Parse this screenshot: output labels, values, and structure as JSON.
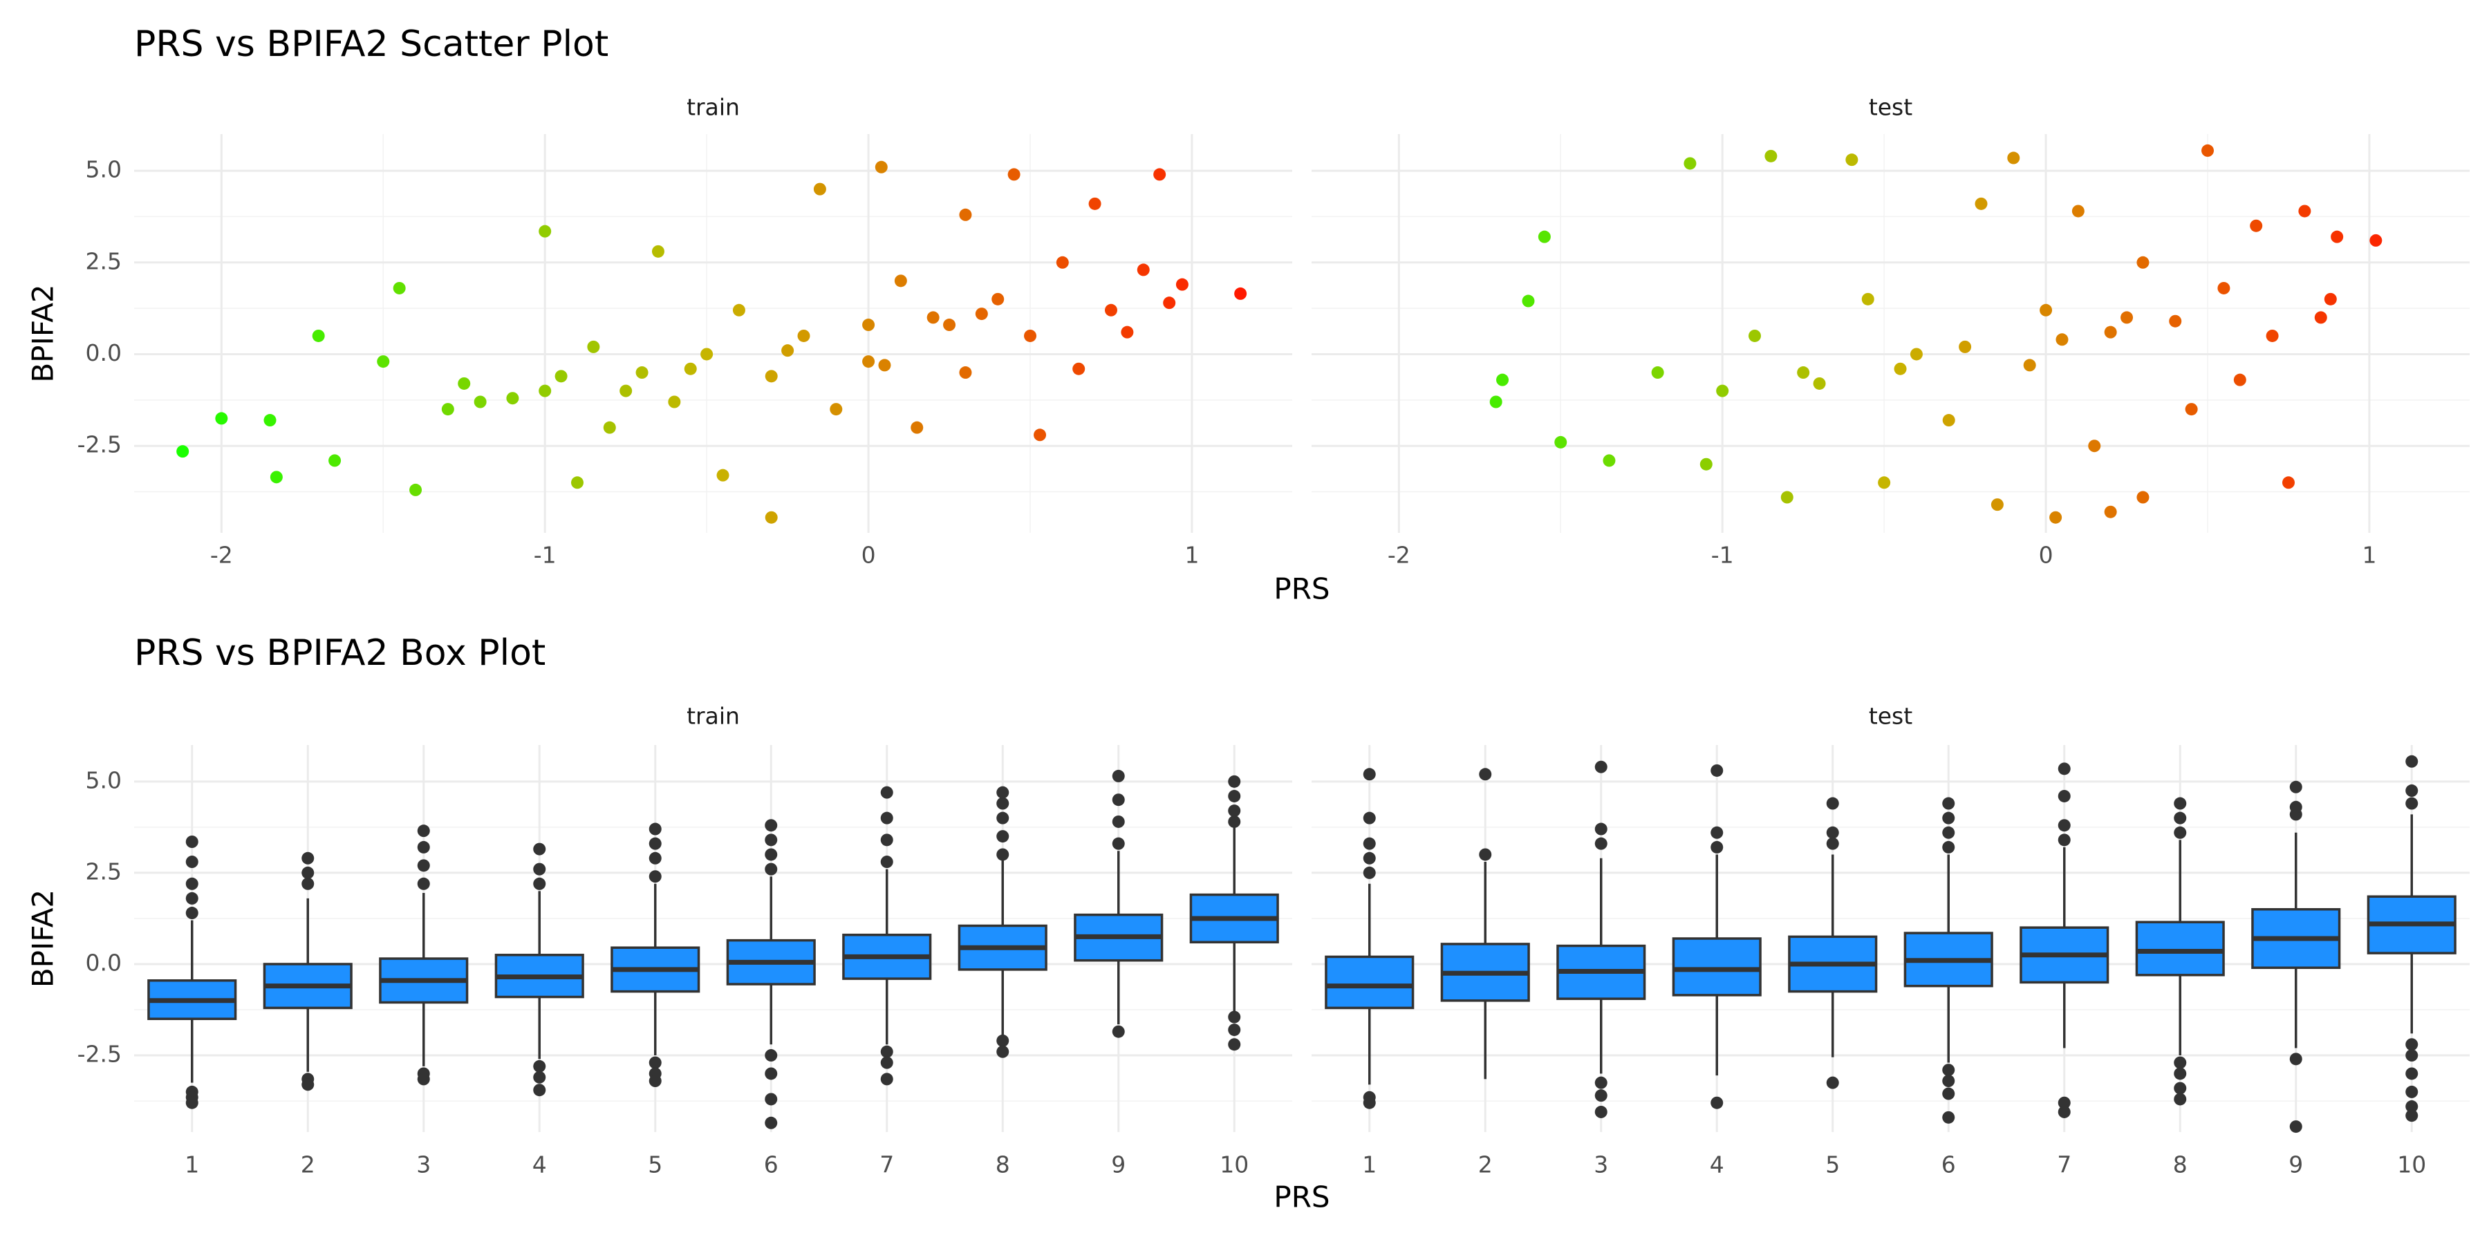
{
  "chart_data": [
    {
      "type": "scatter",
      "title": "PRS vs BPIFA2 Scatter Plot",
      "x_label": "PRS",
      "y_label": "BPIFA2",
      "xlim": [
        -2.27,
        1.31
      ],
      "ylim": [
        -4.87,
        6.0
      ],
      "xticks": [
        -2,
        -1,
        0,
        1
      ],
      "xminor": [
        -1.5,
        -0.5,
        0.5
      ],
      "yticks": [
        -2.5,
        {
          "value": 0,
          "label": "0.0"
        },
        2.5,
        {
          "value": 5,
          "label": "5.0"
        }
      ],
      "yminor": [
        -3.75,
        -1.25,
        1.25,
        3.75
      ],
      "grid": true,
      "color_gradient": [
        "#1aff00",
        "#c8b400",
        "#ff1a00"
      ],
      "panels": [
        {
          "name": "train",
          "x": [
            -2.12,
            -2.0,
            -1.85,
            -1.83,
            -1.7,
            -1.65,
            -1.5,
            -1.45,
            -1.4,
            -1.3,
            -1.25,
            -1.1,
            -1.0,
            -1.0,
            -0.9,
            -0.85,
            -0.8,
            -0.7,
            -0.65,
            -0.6,
            -0.5,
            -0.45,
            -0.4,
            -0.3,
            -0.3,
            -0.2,
            -0.15,
            -0.1,
            0.0,
            0.04,
            0.05,
            0.1,
            0.15,
            0.2,
            0.3,
            0.3,
            0.4,
            0.45,
            0.5,
            0.53,
            0.6,
            0.65,
            0.7,
            0.75,
            0.8,
            0.85,
            0.9,
            0.93,
            0.97,
            1.15,
            -1.2,
            -0.95,
            -0.55,
            -0.25,
            0.25,
            0.35,
            -0.75,
            0.0
          ],
          "y": [
            -2.65,
            -1.75,
            -1.8,
            -3.35,
            0.5,
            -2.9,
            -0.2,
            1.8,
            -3.7,
            -1.5,
            -0.8,
            -1.2,
            3.35,
            -1.0,
            -3.5,
            0.2,
            -2.0,
            -0.5,
            2.8,
            -1.3,
            0.0,
            -3.3,
            1.2,
            -4.45,
            -0.6,
            0.5,
            4.5,
            -1.5,
            0.8,
            5.1,
            -0.3,
            2.0,
            -2.0,
            1.0,
            3.8,
            -0.5,
            1.5,
            4.9,
            0.5,
            -2.2,
            2.5,
            -0.4,
            4.1,
            1.2,
            0.6,
            2.3,
            4.9,
            1.4,
            1.9,
            1.65,
            -1.3,
            -0.6,
            -0.4,
            0.1,
            0.8,
            1.1,
            -1.0,
            -0.2
          ]
        },
        {
          "name": "test",
          "x": [
            -1.68,
            -1.7,
            -1.6,
            -1.55,
            -1.5,
            -1.35,
            -1.2,
            -1.1,
            -1.05,
            -0.9,
            -0.85,
            -0.8,
            -0.7,
            -0.6,
            -0.55,
            -0.5,
            -0.4,
            -0.3,
            -0.2,
            -0.15,
            -0.1,
            -0.05,
            0.0,
            0.03,
            0.1,
            0.15,
            0.2,
            0.2,
            0.3,
            0.3,
            0.4,
            0.45,
            0.5,
            0.55,
            0.6,
            0.65,
            0.7,
            0.75,
            0.8,
            0.85,
            0.88,
            0.9,
            1.02,
            -1.0,
            -0.75,
            -0.45,
            -0.25,
            0.05,
            0.25
          ],
          "y": [
            -0.7,
            -1.3,
            1.45,
            3.2,
            -2.4,
            -2.9,
            -0.5,
            5.2,
            -3.0,
            0.5,
            5.4,
            -3.9,
            -0.8,
            5.3,
            1.5,
            -3.5,
            0.0,
            -1.8,
            4.1,
            -4.1,
            5.35,
            -0.3,
            1.2,
            -4.45,
            3.9,
            -2.5,
            0.6,
            -4.3,
            2.5,
            -3.9,
            0.9,
            -1.5,
            5.55,
            1.8,
            -0.7,
            3.5,
            0.5,
            -3.5,
            3.9,
            1.0,
            1.5,
            3.2,
            3.1,
            -1.0,
            -0.5,
            -0.4,
            0.2,
            0.4,
            1.0
          ]
        }
      ]
    },
    {
      "type": "box",
      "title": "PRS vs BPIFA2 Box Plot",
      "x_label": "PRS",
      "y_label": "BPIFA2",
      "categories": [
        "1",
        "2",
        "3",
        "4",
        "5",
        "6",
        "7",
        "8",
        "9",
        "10"
      ],
      "ylim": [
        -4.6,
        6.0
      ],
      "yticks": [
        -2.5,
        {
          "value": 0,
          "label": "0.0"
        },
        2.5,
        {
          "value": 5,
          "label": "5.0"
        }
      ],
      "yminor": [
        -3.75,
        -1.25,
        1.25,
        3.75
      ],
      "grid": true,
      "color": "#1e90ff",
      "panels": [
        {
          "name": "train",
          "boxes": [
            {
              "low": -3.25,
              "q1": -1.5,
              "median": -1.0,
              "q3": -0.45,
              "high": 1.2,
              "outliers": [
                -3.5,
                -3.65,
                -3.8,
                1.4,
                1.8,
                2.2,
                2.8,
                3.35
              ]
            },
            {
              "low": -2.95,
              "q1": -1.2,
              "median": -0.6,
              "q3": 0.0,
              "high": 1.8,
              "outliers": [
                -3.15,
                -3.3,
                2.2,
                2.5,
                2.9
              ]
            },
            {
              "low": -2.8,
              "q1": -1.05,
              "median": -0.45,
              "q3": 0.15,
              "high": 1.95,
              "outliers": [
                -3.0,
                -3.15,
                2.2,
                2.7,
                3.2,
                3.65
              ]
            },
            {
              "low": -2.6,
              "q1": -0.9,
              "median": -0.35,
              "q3": 0.25,
              "high": 2.0,
              "outliers": [
                -2.8,
                -3.1,
                -3.45,
                2.2,
                2.6,
                3.15
              ]
            },
            {
              "low": -2.5,
              "q1": -0.75,
              "median": -0.15,
              "q3": 0.45,
              "high": 2.2,
              "outliers": [
                -2.7,
                -3.0,
                -3.2,
                2.4,
                2.9,
                3.3,
                3.7
              ]
            },
            {
              "low": -2.2,
              "q1": -0.55,
              "median": 0.05,
              "q3": 0.65,
              "high": 2.4,
              "outliers": [
                -2.5,
                -3.0,
                -3.7,
                -4.35,
                2.6,
                3.0,
                3.4,
                3.8
              ]
            },
            {
              "low": -2.2,
              "q1": -0.4,
              "median": 0.2,
              "q3": 0.8,
              "high": 2.6,
              "outliers": [
                -2.4,
                -2.7,
                -3.15,
                2.8,
                3.4,
                4.0,
                4.7
              ]
            },
            {
              "low": -1.95,
              "q1": -0.15,
              "median": 0.45,
              "q3": 1.05,
              "high": 2.85,
              "outliers": [
                -2.1,
                -2.4,
                3.0,
                3.5,
                4.0,
                4.4,
                4.7
              ]
            },
            {
              "low": -1.65,
              "q1": 0.1,
              "median": 0.75,
              "q3": 1.35,
              "high": 3.1,
              "outliers": [
                -1.85,
                3.3,
                3.9,
                4.5,
                5.15
              ]
            },
            {
              "low": -1.3,
              "q1": 0.6,
              "median": 1.25,
              "q3": 1.9,
              "high": 3.8,
              "outliers": [
                -1.45,
                -1.8,
                -2.2,
                3.9,
                4.2,
                4.6,
                5.0
              ]
            }
          ]
        },
        {
          "name": "test",
          "boxes": [
            {
              "low": -3.3,
              "q1": -1.2,
              "median": -0.6,
              "q3": 0.2,
              "high": 2.2,
              "outliers": [
                -3.65,
                -3.8,
                2.5,
                2.9,
                3.3,
                4.0,
                5.2
              ]
            },
            {
              "low": -3.15,
              "q1": -1.0,
              "median": -0.25,
              "q3": 0.55,
              "high": 2.8,
              "outliers": [
                3.0,
                5.2
              ]
            },
            {
              "low": -3.0,
              "q1": -0.95,
              "median": -0.2,
              "q3": 0.5,
              "high": 2.9,
              "outliers": [
                -3.25,
                -3.6,
                -4.05,
                3.3,
                3.7,
                5.4
              ]
            },
            {
              "low": -3.05,
              "q1": -0.85,
              "median": -0.15,
              "q3": 0.7,
              "high": 3.0,
              "outliers": [
                -3.8,
                3.2,
                3.6,
                5.3
              ]
            },
            {
              "low": -2.55,
              "q1": -0.75,
              "median": 0.0,
              "q3": 0.75,
              "high": 3.0,
              "outliers": [
                -3.25,
                3.3,
                3.6,
                4.4
              ]
            },
            {
              "low": -2.7,
              "q1": -0.6,
              "median": 0.1,
              "q3": 0.85,
              "high": 3.0,
              "outliers": [
                -2.9,
                -3.2,
                -3.55,
                -4.2,
                3.2,
                3.6,
                4.0,
                4.4
              ]
            },
            {
              "low": -2.3,
              "q1": -0.5,
              "median": 0.25,
              "q3": 1.0,
              "high": 3.2,
              "outliers": [
                -3.8,
                -4.05,
                3.4,
                3.8,
                4.6,
                5.35
              ]
            },
            {
              "low": -2.5,
              "q1": -0.3,
              "median": 0.35,
              "q3": 1.15,
              "high": 3.4,
              "outliers": [
                -2.7,
                -3.0,
                -3.4,
                -3.7,
                3.6,
                4.0,
                4.4
              ]
            },
            {
              "low": -2.3,
              "q1": -0.1,
              "median": 0.7,
              "q3": 1.5,
              "high": 3.6,
              "outliers": [
                -2.6,
                -4.45,
                4.1,
                4.3,
                4.85
              ]
            },
            {
              "low": -1.9,
              "q1": 0.3,
              "median": 1.1,
              "q3": 1.85,
              "high": 4.1,
              "outliers": [
                -2.2,
                -2.5,
                -3.0,
                -3.5,
                -3.9,
                -4.15,
                4.4,
                4.75,
                5.55
              ]
            }
          ]
        }
      ]
    }
  ]
}
